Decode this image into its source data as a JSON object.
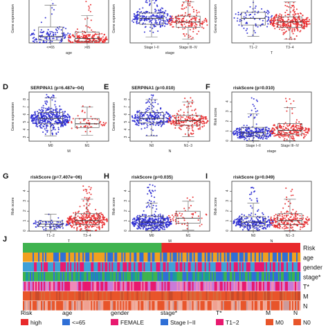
{
  "colors": {
    "blue": "#2b2bd0",
    "red": "#e8292b",
    "green": "#3fb34f",
    "box": "#555555",
    "axis": "#333333"
  },
  "chart_data": [
    {
      "type": "scatter",
      "panel": "A",
      "title": "",
      "xlabel": "age",
      "ylabel": "Gene expression",
      "categories": [
        "<=65",
        ">65"
      ],
      "ylim": [
        0,
        3.2
      ],
      "yticks": [],
      "groups": [
        {
          "label": "<=65",
          "color": "blue",
          "n": 120,
          "stats": {
            "min": 0,
            "q1": 0.18,
            "median": 0.42,
            "q3": 1.05,
            "max": 2.5,
            "hi": 3.0
          }
        },
        {
          "label": ">65",
          "color": "red",
          "n": 200,
          "stats": {
            "min": 0,
            "q1": 0.12,
            "median": 0.3,
            "q3": 0.72,
            "max": 1.8,
            "hi": 3.0
          }
        }
      ]
    },
    {
      "type": "scatter",
      "panel": "",
      "title": "",
      "xlabel": "stage",
      "ylabel": "Gene expression",
      "categories": [
        "Stage I−II",
        "Stage III−IV"
      ],
      "ylim": [
        2.5,
        9
      ],
      "yticks": [],
      "groups": [
        {
          "label": "Stage I−II",
          "color": "blue",
          "n": 220,
          "stats": {
            "min": 3.3,
            "q1": 5.0,
            "median": 5.8,
            "q3": 6.5,
            "max": 8.3,
            "hi": 8.8
          }
        },
        {
          "label": "Stage III−IV",
          "color": "red",
          "n": 170,
          "stats": {
            "min": 3.0,
            "q1": 4.6,
            "median": 5.3,
            "q3": 6.1,
            "max": 8.0,
            "hi": 8.6
          }
        }
      ]
    },
    {
      "type": "scatter",
      "panel": "",
      "title": "",
      "xlabel": "T",
      "ylabel": "Gene expression",
      "categories": [
        "T1−2",
        "T3−4"
      ],
      "ylim": [
        2.5,
        9
      ],
      "yticks": [],
      "groups": [
        {
          "label": "T1−2",
          "color": "blue",
          "n": 80,
          "stats": {
            "min": 3.4,
            "q1": 4.9,
            "median": 5.8,
            "q3": 6.6,
            "max": 8.3,
            "hi": 8.8
          }
        },
        {
          "label": "T3−4",
          "color": "red",
          "n": 300,
          "stats": {
            "min": 3.0,
            "q1": 4.6,
            "median": 5.3,
            "q3": 6.0,
            "max": 8.0,
            "hi": 8.7
          }
        }
      ]
    },
    {
      "type": "scatter",
      "panel": "D",
      "title": "SERPINA1 (p=6.487e−04)",
      "xlabel": "M",
      "ylabel": "Gene expression",
      "categories": [
        "M0",
        "M1"
      ],
      "ylim": [
        2.5,
        9
      ],
      "yticks": [
        3,
        4,
        5,
        6,
        7,
        8
      ],
      "groups": [
        {
          "label": "M0",
          "color": "blue",
          "n": 380,
          "stats": {
            "min": 3.2,
            "q1": 4.8,
            "median": 5.5,
            "q3": 6.3,
            "max": 8.2,
            "hi": 8.7
          }
        },
        {
          "label": "M1",
          "color": "red",
          "n": 50,
          "stats": {
            "min": 3.3,
            "q1": 4.3,
            "median": 4.8,
            "q3": 5.5,
            "max": 7.0,
            "hi": 7.2
          }
        }
      ]
    },
    {
      "type": "scatter",
      "panel": "E",
      "title": "SERPINA1 (p=0.010)",
      "xlabel": "N",
      "ylabel": "Gene expression",
      "categories": [
        "N0",
        "N1−3"
      ],
      "ylim": [
        2.5,
        9
      ],
      "yticks": [
        3,
        4,
        5,
        6,
        7,
        8
      ],
      "groups": [
        {
          "label": "N0",
          "color": "blue",
          "n": 250,
          "stats": {
            "min": 3.2,
            "q1": 4.9,
            "median": 5.5,
            "q3": 6.3,
            "max": 8.0,
            "hi": 8.6
          }
        },
        {
          "label": "N1−3",
          "color": "red",
          "n": 200,
          "stats": {
            "min": 3.1,
            "q1": 4.6,
            "median": 5.2,
            "q3": 5.9,
            "max": 7.7,
            "hi": 8.3
          }
        }
      ]
    },
    {
      "type": "scatter",
      "panel": "F",
      "title": "riskScore (p=0.010)",
      "xlabel": "stage",
      "ylabel": "Risk score",
      "categories": [
        "Stage I−II",
        "Stage III−IV"
      ],
      "ylim": [
        0,
        5
      ],
      "yticks": [
        0,
        1,
        2,
        3,
        4
      ],
      "groups": [
        {
          "label": "Stage I−II",
          "color": "blue",
          "n": 250,
          "stats": {
            "min": 0.05,
            "q1": 0.55,
            "median": 0.85,
            "q3": 1.4,
            "max": 2.8,
            "hi": 4.6
          }
        },
        {
          "label": "Stage III−IV",
          "color": "red",
          "n": 220,
          "stats": {
            "min": 0.05,
            "q1": 0.7,
            "median": 1.1,
            "q3": 1.8,
            "max": 3.4,
            "hi": 4.4
          }
        }
      ]
    },
    {
      "type": "scatter",
      "panel": "G",
      "title": "riskScore (p=7.407e−06)",
      "xlabel": "T",
      "ylabel": "Risk score",
      "categories": [
        "T1−2",
        "T3−4"
      ],
      "ylim": [
        0,
        5
      ],
      "yticks": [
        0,
        1,
        2,
        3,
        4
      ],
      "groups": [
        {
          "label": "T1−2",
          "color": "blue",
          "n": 80,
          "stats": {
            "min": 0.1,
            "q1": 0.45,
            "median": 0.7,
            "q3": 1.0,
            "max": 1.7,
            "hi": 2.0
          }
        },
        {
          "label": "T3−4",
          "color": "red",
          "n": 320,
          "stats": {
            "min": 0.05,
            "q1": 0.65,
            "median": 1.05,
            "q3": 1.75,
            "max": 3.2,
            "hi": 4.7
          }
        }
      ]
    },
    {
      "type": "scatter",
      "panel": "H",
      "title": "riskScore (p=0.035)",
      "xlabel": "M",
      "ylabel": "Risk score",
      "categories": [
        "M0",
        "M1"
      ],
      "ylim": [
        0,
        5
      ],
      "yticks": [
        0,
        1,
        2,
        3,
        4
      ],
      "groups": [
        {
          "label": "M0",
          "color": "blue",
          "n": 400,
          "stats": {
            "min": 0.05,
            "q1": 0.55,
            "median": 0.9,
            "q3": 1.5,
            "max": 2.8,
            "hi": 4.7
          }
        },
        {
          "label": "M1",
          "color": "red",
          "n": 50,
          "stats": {
            "min": 0.1,
            "q1": 0.8,
            "median": 1.3,
            "q3": 2.0,
            "max": 3.0,
            "hi": 3.4
          }
        }
      ]
    },
    {
      "type": "scatter",
      "panel": "I",
      "title": "riskScore (p=0.049)",
      "xlabel": "N",
      "ylabel": "Risk score",
      "categories": [
        "N0",
        "N1−3"
      ],
      "ylim": [
        0,
        5
      ],
      "yticks": [
        0,
        1,
        2,
        3,
        4
      ],
      "groups": [
        {
          "label": "N0",
          "color": "blue",
          "n": 260,
          "stats": {
            "min": 0.05,
            "q1": 0.55,
            "median": 0.9,
            "q3": 1.45,
            "max": 2.8,
            "hi": 4.6
          }
        },
        {
          "label": "N1−3",
          "color": "red",
          "n": 210,
          "stats": {
            "min": 0.05,
            "q1": 0.65,
            "median": 1.05,
            "q3": 1.75,
            "max": 3.2,
            "hi": 4.4
          }
        }
      ]
    },
    {
      "type": "heatmap",
      "panel": "J",
      "rows": [
        "Risk",
        "age",
        "gender",
        "stage*",
        "T*",
        "M",
        "N"
      ],
      "legend": [
        {
          "title": "Risk",
          "label": "high",
          "color": "#e8292b"
        },
        {
          "title": "age",
          "label": "<=65",
          "color": "#2f6fd6"
        },
        {
          "title": "gender",
          "label": "FEMALE",
          "color": "#e8196f"
        },
        {
          "title": "stage*",
          "label": "Stage I−II",
          "color": "#2f6fd6"
        },
        {
          "title": "T*",
          "label": "T1−2",
          "color": "#e8196f"
        },
        {
          "title": "M",
          "label": "M0",
          "color": "#e8552a"
        },
        {
          "title": "N",
          "label": "N0",
          "color": "#e8552a"
        }
      ]
    }
  ]
}
